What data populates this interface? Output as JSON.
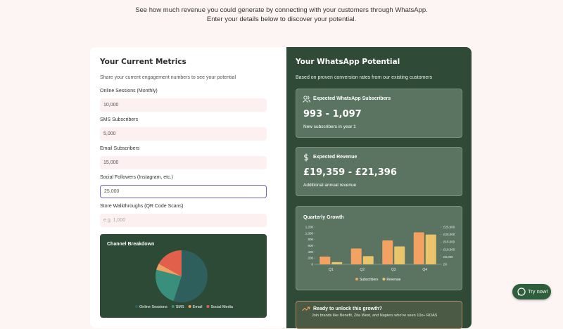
{
  "header": {
    "line1": "See how much revenue you could generate by connecting with your customers through WhatsApp.",
    "line2": "Enter your details below to discover your potential."
  },
  "metrics": {
    "title": "Your Current Metrics",
    "subtitle": "Share your current engagement numbers to see your potential",
    "fields": [
      {
        "label": "Online Sessions (Monthly)",
        "value": "10,000"
      },
      {
        "label": "SMS Subscribers",
        "value": "5,000"
      },
      {
        "label": "Email Subscribers",
        "value": "15,000"
      },
      {
        "label": "Social Followers (Instagram, etc.)",
        "value": "25,000"
      },
      {
        "label": "Store Walkthroughs (QR Code Scans)",
        "placeholder": "e.g. 1,000"
      }
    ]
  },
  "potential": {
    "title": "Your WhatsApp Potential",
    "subtitle": "Based on proven conversion rates from our existing customers",
    "cards": [
      {
        "label": "Expected WhatsApp Subscribers",
        "value": "993 - 1,097",
        "note": "New subscribers in year 1"
      },
      {
        "label": "Expected Revenue",
        "value": "£19,359 - £21,396",
        "note": "Additional annual revenue"
      }
    ]
  },
  "cta": {
    "title": "Ready to unlock this growth?",
    "text": "Join brands like Benefit, Zita West, and Napiers who've seen 10x+ ROAS"
  },
  "button": {
    "label": "Try now!"
  },
  "chart_data": [
    {
      "type": "pie",
      "title": "Channel Breakdown",
      "categories": [
        "Online Sessions",
        "SMS",
        "Email",
        "Social Media"
      ],
      "values": [
        55,
        24,
        4,
        17
      ],
      "colors": [
        "#2f5f5c",
        "#3a8f7c",
        "#f0a060",
        "#e0604c"
      ]
    },
    {
      "type": "bar",
      "title": "Quarterly Growth",
      "categories": [
        "Q1",
        "Q2",
        "Q3",
        "Q4"
      ],
      "series": [
        {
          "name": "Subscribers",
          "color": "#f4a261",
          "values": [
            250,
            510,
            770,
            1030
          ]
        },
        {
          "name": "Revenue",
          "color": "#e9c46a",
          "values": [
            1500,
            5500,
            12000,
            20000
          ],
          "axis": "y2"
        }
      ],
      "ylim": [
        0,
        1200
      ],
      "yticks": [
        0,
        200,
        400,
        600,
        800,
        {
          "value": 1000,
          "label": "1,000"
        },
        {
          "value": 1200,
          "label": "1,200"
        }
      ],
      "y2lim": [
        0,
        25000
      ],
      "y2ticks": [
        {
          "value": 0,
          "label": "£0"
        },
        {
          "value": 5000,
          "label": "£5,000"
        },
        {
          "value": 10000,
          "label": "£10,000"
        },
        {
          "value": 15000,
          "label": "£15,000"
        },
        {
          "value": 20000,
          "label": "£20,000"
        },
        {
          "value": 25000,
          "label": "£25,000"
        }
      ]
    }
  ]
}
